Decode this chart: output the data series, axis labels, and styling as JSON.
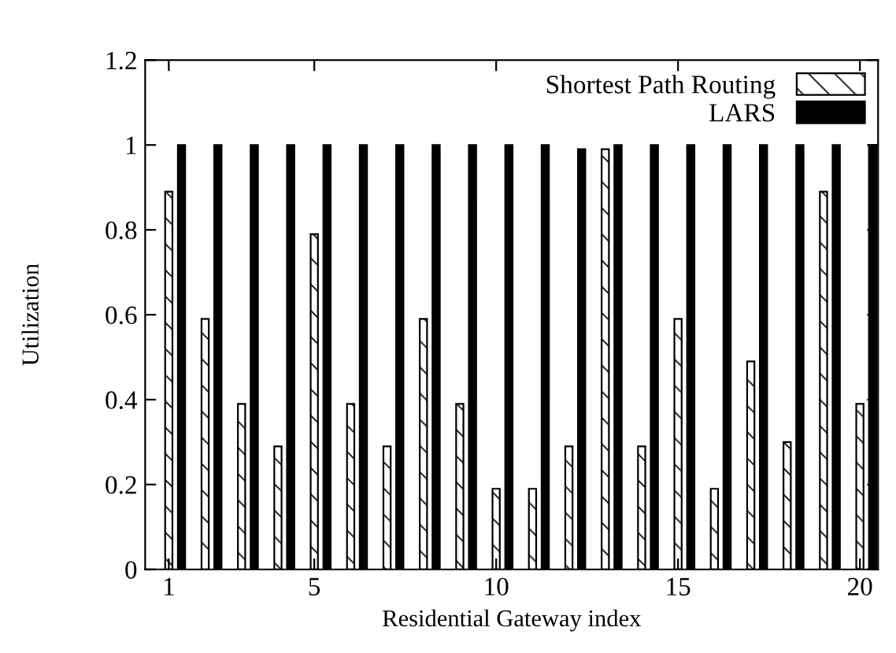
{
  "chart_data": {
    "type": "bar",
    "xlabel": "Residential Gateway index",
    "ylabel": "Utilization",
    "x": [
      1,
      2,
      3,
      4,
      5,
      6,
      7,
      8,
      9,
      10,
      11,
      12,
      13,
      14,
      15,
      16,
      17,
      18,
      19,
      20
    ],
    "series": [
      {
        "name": "Shortest Path Routing",
        "color": "#000000",
        "values": [
          0.89,
          0.59,
          0.39,
          0.29,
          0.79,
          0.39,
          0.29,
          0.59,
          0.39,
          0.19,
          0.19,
          0.29,
          0.99,
          0.29,
          0.59,
          0.19,
          0.49,
          0.3,
          0.89,
          0.39
        ]
      },
      {
        "name": "LARS",
        "color": "#000000",
        "values": [
          1,
          1,
          1,
          1,
          1,
          1,
          1,
          1,
          1,
          1,
          1,
          0.99,
          1,
          1,
          1,
          1,
          1,
          1,
          1,
          1
        ]
      }
    ],
    "xlim": [
      0.35,
      20.5
    ],
    "xticks": [
      1,
      5,
      10,
      15,
      20
    ],
    "ylim": [
      0,
      1.2
    ],
    "yticks": [
      0,
      0.2,
      0.4,
      0.6,
      0.8,
      1,
      1.2
    ],
    "grid": false,
    "legend": "top right"
  }
}
